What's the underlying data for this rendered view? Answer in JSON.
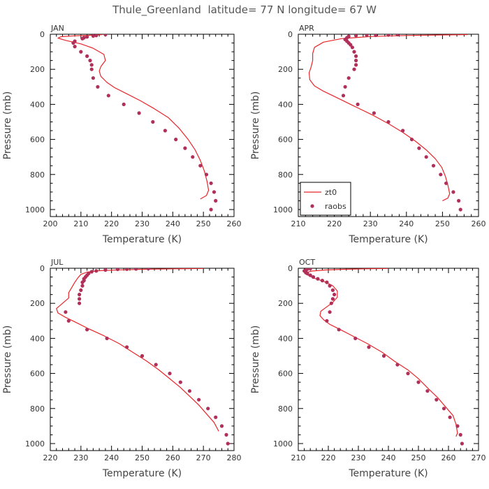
{
  "figure_title": "Thule_Greenland  latitude= 77 N longitude= 67 W",
  "colors": {
    "model_line": "#e8262a",
    "obs_marker": "#b0305a",
    "axis": "#000000"
  },
  "chart_data": [
    {
      "type": "line",
      "panel": "JAN",
      "title": "JAN",
      "xlabel": "Temperature (K)",
      "ylabel": "Pressure (mb)",
      "xlim": [
        200,
        260
      ],
      "ylim": [
        1040,
        0
      ],
      "xticks": [
        200,
        210,
        220,
        230,
        240,
        250,
        260
      ],
      "yticks": [
        0,
        200,
        400,
        600,
        800,
        1000
      ],
      "legend": null,
      "series": [
        {
          "name": "zt0",
          "kind": "line",
          "points": [
            [
              217.0,
              2
            ],
            [
              213.0,
              6
            ],
            [
              208.0,
              9
            ],
            [
              203.5,
              14
            ],
            [
              202.5,
              22
            ],
            [
              205.0,
              35
            ],
            [
              210.0,
              55
            ],
            [
              214.0,
              80
            ],
            [
              217.5,
              115
            ],
            [
              218.0,
              150
            ],
            [
              216.5,
              185
            ],
            [
              216.0,
              210
            ],
            [
              216.5,
              240
            ],
            [
              218.5,
              275
            ],
            [
              221.0,
              305
            ],
            [
              225.0,
              340
            ],
            [
              229.5,
              380
            ],
            [
              234.0,
              425
            ],
            [
              238.5,
              475
            ],
            [
              242.0,
              535
            ],
            [
              245.0,
              600
            ],
            [
              247.3,
              660
            ],
            [
              249.0,
              720
            ],
            [
              250.3,
              780
            ],
            [
              251.2,
              840
            ],
            [
              251.7,
              890
            ],
            [
              251.0,
              920
            ],
            [
              249.0,
              940
            ]
          ]
        },
        {
          "name": "raobs",
          "kind": "scatter",
          "points": [
            [
              218.0,
              2
            ],
            [
              215.0,
              7
            ],
            [
              214.0,
              10
            ],
            [
              212.0,
              15
            ],
            [
              211.0,
              20
            ],
            [
              210.5,
              25
            ],
            [
              208.0,
              40
            ],
            [
              207.5,
              50
            ],
            [
              208.0,
              70
            ],
            [
              210.0,
              100
            ],
            [
              212.0,
              125
            ],
            [
              213.0,
              150
            ],
            [
              213.5,
              175
            ],
            [
              213.5,
              200
            ],
            [
              214.0,
              250
            ],
            [
              215.5,
              300
            ],
            [
              219.0,
              350
            ],
            [
              224.0,
              400
            ],
            [
              229.0,
              450
            ],
            [
              233.5,
              500
            ],
            [
              237.5,
              550
            ],
            [
              241.0,
              600
            ],
            [
              244.0,
              650
            ],
            [
              246.5,
              700
            ],
            [
              249.0,
              750
            ],
            [
              251.0,
              800
            ],
            [
              252.5,
              850
            ],
            [
              253.5,
              900
            ],
            [
              254.0,
              950
            ],
            [
              252.5,
              1000
            ]
          ]
        }
      ]
    },
    {
      "type": "line",
      "panel": "APR",
      "title": "APR",
      "xlabel": "Temperature (K)",
      "ylabel": "Pressure (mb)",
      "xlim": [
        210,
        260
      ],
      "ylim": [
        1040,
        0
      ],
      "xticks": [
        210,
        220,
        230,
        240,
        250,
        260
      ],
      "yticks": [
        0,
        200,
        400,
        600,
        800,
        1000
      ],
      "legend": {
        "position": "bottom-left",
        "entries": [
          "zt0",
          "raobs"
        ]
      },
      "series": [
        {
          "name": "zt0",
          "kind": "line",
          "points": [
            [
              257.0,
              2
            ],
            [
              250.0,
              4
            ],
            [
              240.0,
              7
            ],
            [
              230.0,
              13
            ],
            [
              222.0,
              25
            ],
            [
              217.0,
              45
            ],
            [
              214.5,
              75
            ],
            [
              214.0,
              110
            ],
            [
              214.0,
              150
            ],
            [
              213.5,
              190
            ],
            [
              213.0,
              220
            ],
            [
              213.2,
              260
            ],
            [
              214.5,
              295
            ],
            [
              217.0,
              325
            ],
            [
              221.0,
              365
            ],
            [
              225.5,
              410
            ],
            [
              230.5,
              460
            ],
            [
              235.0,
              510
            ],
            [
              239.0,
              560
            ],
            [
              242.5,
              610
            ],
            [
              245.5,
              660
            ],
            [
              248.0,
              710
            ],
            [
              249.8,
              760
            ],
            [
              250.8,
              810
            ],
            [
              251.5,
              860
            ],
            [
              252.0,
              910
            ],
            [
              251.5,
              935
            ],
            [
              250.0,
              950
            ]
          ]
        },
        {
          "name": "raobs",
          "kind": "scatter",
          "points": [
            [
              237.5,
              2
            ],
            [
              235.0,
              4
            ],
            [
              231.5,
              6
            ],
            [
              229.0,
              5
            ],
            [
              226.0,
              8
            ],
            [
              224.0,
              12
            ],
            [
              223.5,
              20
            ],
            [
              223.0,
              30
            ],
            [
              223.5,
              40
            ],
            [
              224.0,
              50
            ],
            [
              224.5,
              60
            ],
            [
              225.0,
              75
            ],
            [
              225.5,
              100
            ],
            [
              226.0,
              125
            ],
            [
              226.0,
              150
            ],
            [
              226.0,
              175
            ],
            [
              225.5,
              200
            ],
            [
              224.0,
              250
            ],
            [
              223.0,
              300
            ],
            [
              222.5,
              350
            ],
            [
              226.5,
              400
            ],
            [
              231.0,
              450
            ],
            [
              235.0,
              500
            ],
            [
              239.0,
              550
            ],
            [
              241.5,
              600
            ],
            [
              243.5,
              650
            ],
            [
              245.5,
              700
            ],
            [
              247.5,
              750
            ],
            [
              249.5,
              800
            ],
            [
              251.0,
              850
            ],
            [
              253.0,
              900
            ],
            [
              254.5,
              950
            ],
            [
              255.0,
              1000
            ]
          ]
        }
      ]
    },
    {
      "type": "line",
      "panel": "JUL",
      "title": "JUL",
      "xlabel": "Temperature (K)",
      "ylabel": "Pressure (mb)",
      "xlim": [
        220,
        280
      ],
      "ylim": [
        1040,
        0
      ],
      "xticks": [
        220,
        230,
        240,
        250,
        260,
        270,
        280
      ],
      "yticks": [
        0,
        200,
        400,
        600,
        800,
        1000
      ],
      "legend": null,
      "series": [
        {
          "name": "zt0",
          "kind": "line",
          "points": [
            [
              270.0,
              1
            ],
            [
              260.0,
              3
            ],
            [
              250.0,
              6
            ],
            [
              243.0,
              9
            ],
            [
              236.0,
              14
            ],
            [
              232.0,
              22
            ],
            [
              230.0,
              35
            ],
            [
              229.0,
              55
            ],
            [
              228.0,
              80
            ],
            [
              227.0,
              110
            ],
            [
              226.0,
              140
            ],
            [
              226.0,
              170
            ],
            [
              224.0,
              200
            ],
            [
              222.0,
              230
            ],
            [
              222.5,
              255
            ],
            [
              225.0,
              280
            ],
            [
              228.5,
              310
            ],
            [
              232.5,
              345
            ],
            [
              237.5,
              385
            ],
            [
              242.5,
              430
            ],
            [
              247.0,
              480
            ],
            [
              251.5,
              530
            ],
            [
              255.5,
              580
            ],
            [
              259.0,
              630
            ],
            [
              262.5,
              680
            ],
            [
              265.5,
              730
            ],
            [
              268.5,
              780
            ],
            [
              271.0,
              830
            ],
            [
              273.5,
              880
            ],
            [
              275.0,
              930
            ]
          ]
        },
        {
          "name": "raobs",
          "kind": "scatter",
          "points": [
            [
              252.0,
              2
            ],
            [
              248.0,
              4
            ],
            [
              245.0,
              5
            ],
            [
              242.0,
              6
            ],
            [
              238.0,
              10
            ],
            [
              235.0,
              15
            ],
            [
              233.5,
              20
            ],
            [
              232.5,
              30
            ],
            [
              232.0,
              40
            ],
            [
              231.5,
              50
            ],
            [
              231.0,
              60
            ],
            [
              231.0,
              70
            ],
            [
              230.5,
              80
            ],
            [
              230.5,
              100
            ],
            [
              230.0,
              125
            ],
            [
              229.5,
              150
            ],
            [
              229.5,
              175
            ],
            [
              229.5,
              200
            ],
            [
              225.0,
              250
            ],
            [
              226.0,
              300
            ],
            [
              232.0,
              350
            ],
            [
              238.5,
              400
            ],
            [
              245.0,
              450
            ],
            [
              250.0,
              500
            ],
            [
              254.5,
              550
            ],
            [
              259.0,
              600
            ],
            [
              262.5,
              650
            ],
            [
              265.5,
              700
            ],
            [
              268.5,
              750
            ],
            [
              271.5,
              800
            ],
            [
              274.0,
              850
            ],
            [
              276.0,
              900
            ],
            [
              277.5,
              950
            ],
            [
              278.0,
              1000
            ]
          ]
        }
      ]
    },
    {
      "type": "line",
      "panel": "OCT",
      "title": "OCT",
      "xlabel": "Temperature (K)",
      "ylabel": "Pressure (mb)",
      "xlim": [
        210,
        270
      ],
      "ylim": [
        1040,
        0
      ],
      "xticks": [
        210,
        220,
        230,
        240,
        250,
        260,
        270
      ],
      "yticks": [
        0,
        200,
        400,
        600,
        800,
        1000
      ],
      "legend": null,
      "series": [
        {
          "name": "zt0",
          "kind": "line",
          "points": [
            [
              240.0,
              1
            ],
            [
              232.0,
              3
            ],
            [
              225.0,
              6
            ],
            [
              219.0,
              10
            ],
            [
              214.5,
              16
            ],
            [
              212.5,
              25
            ],
            [
              213.0,
              38
            ],
            [
              215.0,
              55
            ],
            [
              218.5,
              75
            ],
            [
              221.5,
              100
            ],
            [
              223.0,
              130
            ],
            [
              223.0,
              165
            ],
            [
              221.5,
              195
            ],
            [
              219.5,
              220
            ],
            [
              217.5,
              245
            ],
            [
              217.2,
              270
            ],
            [
              218.5,
              295
            ],
            [
              220.5,
              320
            ],
            [
              224.0,
              350
            ],
            [
              228.5,
              390
            ],
            [
              233.0,
              430
            ],
            [
              238.0,
              480
            ],
            [
              242.0,
              530
            ],
            [
              246.5,
              580
            ],
            [
              250.0,
              630
            ],
            [
              253.5,
              690
            ],
            [
              256.5,
              740
            ],
            [
              259.0,
              790
            ],
            [
              261.5,
              840
            ],
            [
              262.5,
              890
            ],
            [
              263.0,
              940
            ],
            [
              262.5,
              960
            ]
          ]
        },
        {
          "name": "raobs",
          "kind": "scatter",
          "points": [
            [
              214.0,
              2
            ],
            [
              213.0,
              5
            ],
            [
              212.5,
              10
            ],
            [
              212.0,
              15
            ],
            [
              212.5,
              20
            ],
            [
              212.5,
              25
            ],
            [
              213.0,
              30
            ],
            [
              214.0,
              40
            ],
            [
              215.0,
              50
            ],
            [
              216.5,
              60
            ],
            [
              218.0,
              70
            ],
            [
              219.5,
              80
            ],
            [
              220.5,
              100
            ],
            [
              221.5,
              125
            ],
            [
              222.0,
              150
            ],
            [
              221.5,
              175
            ],
            [
              221.0,
              200
            ],
            [
              220.5,
              250
            ],
            [
              219.5,
              300
            ],
            [
              223.5,
              350
            ],
            [
              229.0,
              400
            ],
            [
              233.5,
              450
            ],
            [
              238.5,
              500
            ],
            [
              243.0,
              550
            ],
            [
              246.5,
              600
            ],
            [
              250.0,
              650
            ],
            [
              253.0,
              700
            ],
            [
              256.0,
              750
            ],
            [
              258.5,
              800
            ],
            [
              260.5,
              850
            ],
            [
              263.0,
              900
            ],
            [
              264.0,
              950
            ],
            [
              264.5,
              1000
            ]
          ]
        }
      ]
    }
  ]
}
